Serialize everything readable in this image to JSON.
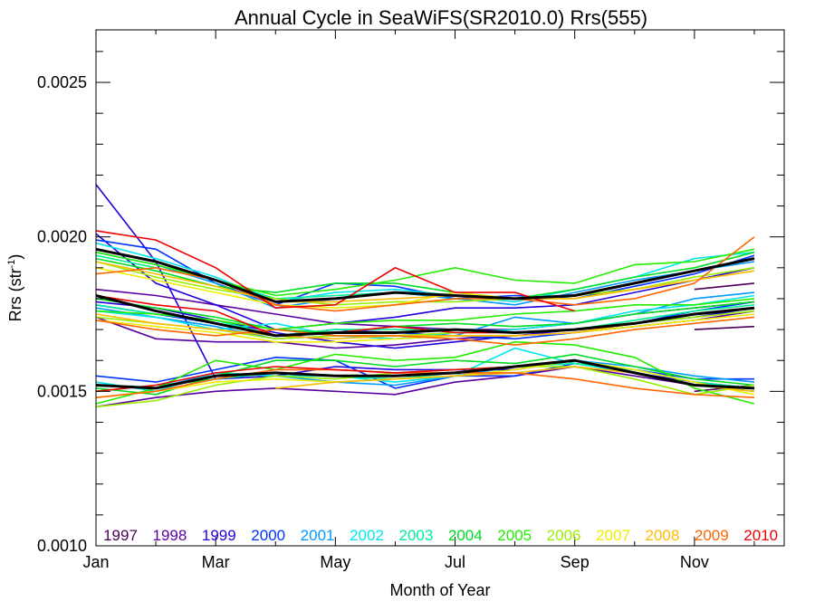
{
  "chart_data": {
    "type": "line",
    "title": "Annual Cycle in SeaWiFS(SR2010.0) Rrs(555)",
    "xlabel": "Month of Year",
    "ylabel_main": "Rrs (str",
    "ylabel_sup": "-1",
    "ylabel_close": ")",
    "xlim": [
      0.0,
      11.5
    ],
    "ylim": [
      0.001,
      0.00267
    ],
    "xticks": [
      {
        "value": 0,
        "label": "Jan"
      },
      {
        "value": 2,
        "label": "Mar"
      },
      {
        "value": 4,
        "label": "May"
      },
      {
        "value": 6,
        "label": "Jul"
      },
      {
        "value": 8,
        "label": "Sep"
      },
      {
        "value": 10,
        "label": "Nov"
      }
    ],
    "yticks": [
      {
        "value": 0.001,
        "label": "0.0010"
      },
      {
        "value": 0.0015,
        "label": "0.0015"
      },
      {
        "value": 0.002,
        "label": "0.0020"
      },
      {
        "value": 0.0025,
        "label": "0.0025"
      }
    ],
    "legend_placement": "bottom inside plot",
    "grid": false,
    "months": [
      0,
      1,
      2,
      3,
      4,
      5,
      6,
      7,
      8,
      9,
      10,
      11
    ],
    "series": [
      {
        "name": "1997",
        "color": "#4b0055",
        "groups": {
          "north": [
            null,
            null,
            null,
            null,
            null,
            null,
            null,
            null,
            null,
            null,
            0.00183,
            0.00185
          ],
          "mid": [
            null,
            null,
            null,
            null,
            null,
            null,
            null,
            null,
            null,
            null,
            0.0017,
            0.00171
          ],
          "south": [
            null,
            null,
            null,
            null,
            null,
            null,
            null,
            null,
            null,
            null,
            0.0015,
            0.00152
          ]
        }
      },
      {
        "name": "1998",
        "color": "#5a00a0",
        "groups": {
          "north": [
            0.00183,
            0.00181,
            0.00178,
            0.00175,
            0.00172,
            0.00171,
            0.0017,
            0.0017,
            0.00172,
            0.00175,
            0.00177,
            0.00179
          ],
          "mid": [
            0.00174,
            0.00167,
            0.00166,
            0.00166,
            0.00164,
            0.00165,
            0.00167,
            0.00168,
            0.00169,
            0.00171,
            0.00173,
            0.00176
          ],
          "south": [
            0.00145,
            0.00148,
            0.0015,
            0.00151,
            0.0015,
            0.00149,
            0.00153,
            0.00155,
            0.00158,
            0.00155,
            0.00152,
            0.0015
          ]
        }
      },
      {
        "name": "1999",
        "color": "#2200dd",
        "groups": {
          "north": [
            0.00201,
            0.00185,
            0.00178,
            0.0017,
            0.00172,
            0.00174,
            0.00177,
            0.00177,
            0.00178,
            0.00182,
            0.00186,
            0.0019
          ],
          "mid": [
            0.00179,
            0.00177,
            0.00173,
            0.00169,
            0.00166,
            0.00164,
            0.00166,
            0.00168,
            0.0017,
            0.00172,
            0.00174,
            0.00177
          ],
          "south": [
            0.00217,
            0.00192,
            0.00154,
            0.00155,
            0.00158,
            0.00157,
            0.00157,
            0.00157,
            0.0016,
            0.00156,
            0.00153,
            0.00151
          ]
        }
      },
      {
        "name": "2000",
        "color": "#0033ff",
        "groups": {
          "north": [
            0.00199,
            0.00196,
            0.00185,
            0.00178,
            0.00185,
            0.00184,
            0.0018,
            0.00181,
            0.0018,
            0.00184,
            0.00188,
            0.00194
          ],
          "mid": [
            0.00178,
            0.00175,
            0.00172,
            0.00168,
            0.0017,
            0.00169,
            0.00168,
            0.00167,
            0.00169,
            0.00172,
            0.00176,
            0.00179
          ],
          "south": [
            0.00155,
            0.00153,
            0.00157,
            0.00161,
            0.0016,
            0.00151,
            0.00155,
            0.00155,
            0.00159,
            0.00157,
            0.00154,
            0.00154
          ]
        }
      },
      {
        "name": "2001",
        "color": "#0099ff",
        "groups": {
          "north": [
            0.00195,
            0.00191,
            0.00185,
            0.00177,
            0.0018,
            0.00182,
            0.0018,
            0.00178,
            0.00182,
            0.00186,
            0.00189,
            0.00192
          ],
          "mid": [
            0.00177,
            0.00174,
            0.00171,
            0.00167,
            0.00168,
            0.00167,
            0.00168,
            0.00174,
            0.00172,
            0.00175,
            0.0018,
            0.00182
          ],
          "south": [
            0.00152,
            0.00151,
            0.00156,
            0.00155,
            0.00153,
            0.00152,
            0.00155,
            0.00158,
            0.0016,
            0.00158,
            0.00155,
            0.00153
          ]
        }
      },
      {
        "name": "2002",
        "color": "#00e5ee",
        "groups": {
          "north": [
            0.00198,
            0.00193,
            0.00187,
            0.00179,
            0.00182,
            0.00183,
            0.00181,
            0.00179,
            0.00183,
            0.00187,
            0.00193,
            0.00195
          ],
          "mid": [
            0.00176,
            0.00174,
            0.0017,
            0.00172,
            0.00168,
            0.00167,
            0.00169,
            0.0017,
            0.00172,
            0.00176,
            0.00178,
            0.00181
          ],
          "south": [
            0.00153,
            0.0015,
            0.00156,
            0.00155,
            0.00155,
            0.00153,
            0.00155,
            0.00164,
            0.00159,
            0.00156,
            0.00152,
            0.0015
          ]
        }
      },
      {
        "name": "2003",
        "color": "#00ee99",
        "groups": {
          "north": [
            0.00194,
            0.0019,
            0.00186,
            0.0018,
            0.00181,
            0.00182,
            0.00181,
            0.0018,
            0.00181,
            0.00185,
            0.00189,
            0.00193
          ],
          "mid": [
            0.00178,
            0.00175,
            0.00173,
            0.00168,
            0.0017,
            0.0017,
            0.0017,
            0.00169,
            0.0017,
            0.00173,
            0.00176,
            0.00178
          ],
          "south": [
            0.0015,
            0.00152,
            0.00154,
            0.00156,
            0.00155,
            0.00154,
            0.00156,
            0.00158,
            0.00159,
            0.00157,
            0.00153,
            0.00151
          ]
        }
      },
      {
        "name": "2004",
        "color": "#00dd22",
        "groups": {
          "north": [
            0.00193,
            0.00189,
            0.00184,
            0.00182,
            0.00185,
            0.00185,
            0.00182,
            0.0018,
            0.00183,
            0.00187,
            0.0019,
            0.00195
          ],
          "mid": [
            0.0018,
            0.00177,
            0.00174,
            0.0017,
            0.00169,
            0.00171,
            0.00172,
            0.00171,
            0.00172,
            0.00175,
            0.00177,
            0.00179
          ],
          "south": [
            0.00151,
            0.00149,
            0.00155,
            0.0016,
            0.0016,
            0.00158,
            0.0016,
            0.00159,
            0.00162,
            0.00158,
            0.00154,
            0.00152
          ]
        }
      },
      {
        "name": "2005",
        "color": "#22ee00",
        "groups": {
          "north": [
            0.00195,
            0.00191,
            0.00186,
            0.00181,
            0.00183,
            0.00186,
            0.0019,
            0.00186,
            0.00185,
            0.00191,
            0.00192,
            0.00196
          ],
          "mid": [
            0.00176,
            0.00175,
            0.00173,
            0.0017,
            0.00172,
            0.00173,
            0.00173,
            0.00175,
            0.00176,
            0.00178,
            0.00178,
            0.0018
          ],
          "south": [
            0.00146,
            0.00151,
            0.0016,
            0.00157,
            0.00162,
            0.0016,
            0.00161,
            0.00166,
            0.00165,
            0.00161,
            0.00151,
            0.00146
          ]
        }
      },
      {
        "name": "2006",
        "color": "#99ee00",
        "groups": {
          "north": [
            0.00192,
            0.00187,
            0.00183,
            0.0018,
            0.00178,
            0.00179,
            0.00179,
            0.0018,
            0.00181,
            0.00183,
            0.00187,
            0.0019
          ],
          "mid": [
            0.00174,
            0.00172,
            0.0017,
            0.00167,
            0.00168,
            0.00168,
            0.00169,
            0.00169,
            0.0017,
            0.00172,
            0.00174,
            0.00176
          ],
          "south": [
            0.00145,
            0.00147,
            0.00152,
            0.00155,
            0.00154,
            0.00156,
            0.00157,
            0.00158,
            0.00158,
            0.00154,
            0.00149,
            0.00152
          ]
        }
      },
      {
        "name": "2007",
        "color": "#eeee00",
        "groups": {
          "north": [
            0.0019,
            0.00186,
            0.00182,
            0.00178,
            0.00177,
            0.00178,
            0.00182,
            0.0018,
            0.0018,
            0.00183,
            0.00186,
            0.00189
          ],
          "mid": [
            0.00173,
            0.00171,
            0.00169,
            0.00166,
            0.00166,
            0.00167,
            0.00168,
            0.00168,
            0.00169,
            0.00171,
            0.00173,
            0.00175
          ],
          "south": [
            0.00148,
            0.0015,
            0.00153,
            0.00154,
            0.00153,
            0.00154,
            0.00155,
            0.00157,
            0.0016,
            0.00157,
            0.00153,
            0.00149
          ]
        }
      },
      {
        "name": "2008",
        "color": "#ffbb00",
        "groups": {
          "north": [
            0.00192,
            0.00188,
            0.00184,
            0.00179,
            0.00179,
            0.0018,
            0.00181,
            0.0018,
            0.0018,
            0.00183,
            0.00186,
            0.00189
          ],
          "mid": [
            0.00175,
            0.00172,
            0.0017,
            0.00168,
            0.00167,
            0.00168,
            0.00168,
            0.00168,
            0.00169,
            0.00172,
            0.00175,
            0.00177
          ],
          "south": [
            null,
            null,
            null,
            0.00151,
            0.00153,
            0.00154,
            0.00155,
            0.00156,
            0.00158,
            0.00156,
            0.00152,
            0.0015
          ]
        }
      },
      {
        "name": "2009",
        "color": "#ff6600",
        "groups": {
          "north": [
            0.00188,
            0.0019,
            0.00186,
            0.00178,
            0.00176,
            0.00178,
            0.0018,
            0.0018,
            0.00178,
            0.0018,
            0.00185,
            0.002
          ],
          "mid": [
            0.00173,
            0.0017,
            0.00168,
            0.0017,
            0.00168,
            0.00168,
            0.00167,
            0.00165,
            0.00167,
            0.0017,
            0.00172,
            0.00174
          ],
          "south": [
            0.00148,
            0.0015,
            0.00154,
            0.00157,
            0.00157,
            0.00156,
            0.00156,
            0.00156,
            0.00154,
            0.00151,
            0.00149,
            0.00148
          ]
        }
      },
      {
        "name": "2010",
        "color": "#ee0000",
        "groups": {
          "north": [
            0.00202,
            0.00199,
            0.0019,
            0.00177,
            0.00178,
            0.0019,
            0.00182,
            0.00182,
            0.00176,
            null,
            null,
            null
          ],
          "mid": [
            0.00181,
            0.00178,
            0.00176,
            0.00168,
            0.00169,
            0.00171,
            0.00169,
            0.00169,
            null,
            null,
            null,
            null
          ],
          "south": [
            0.0015,
            0.00152,
            0.00156,
            0.00158,
            0.00157,
            0.00156,
            0.00157,
            0.00158,
            null,
            null,
            null,
            null
          ]
        }
      }
    ],
    "mean": {
      "color": "#000000",
      "north": [
        0.00196,
        0.00192,
        0.00186,
        0.00179,
        0.0018,
        0.00182,
        0.00181,
        0.0018,
        0.00181,
        0.00185,
        0.00189,
        0.00193
      ],
      "mid": [
        0.00181,
        0.00176,
        0.00172,
        0.00168,
        0.00169,
        0.00169,
        0.0017,
        0.00169,
        0.0017,
        0.00172,
        0.00175,
        0.00177
      ],
      "south": [
        0.00152,
        0.00151,
        0.00155,
        0.00156,
        0.00155,
        0.00155,
        0.00156,
        0.00158,
        0.0016,
        0.00156,
        0.00152,
        0.00151
      ]
    }
  }
}
